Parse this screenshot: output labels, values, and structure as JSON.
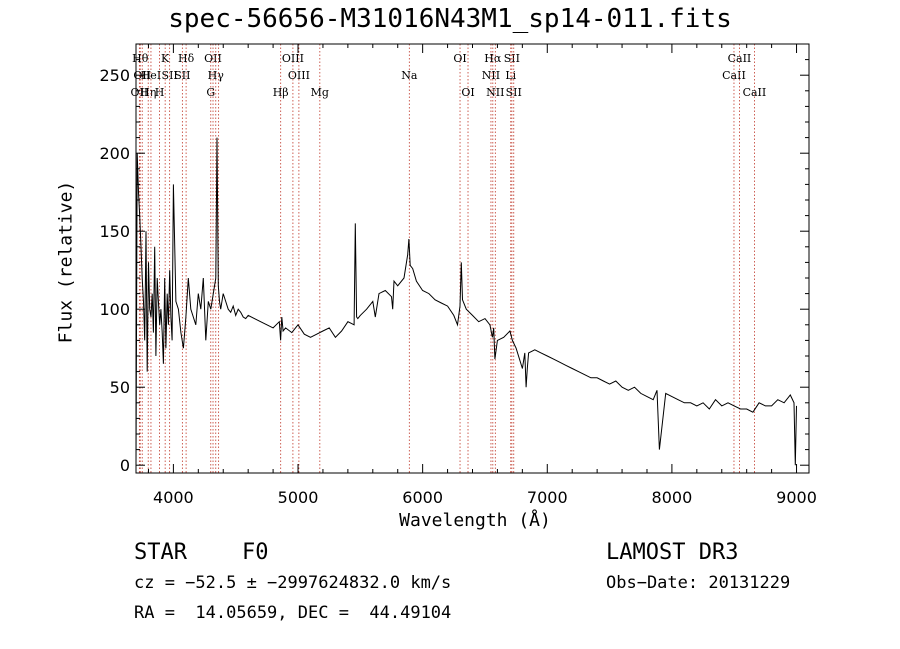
{
  "chart_data": {
    "type": "line",
    "title": "spec-56656-M31016N43M1_sp14-011.fits",
    "xlabel": "Wavelength (Å)",
    "ylabel": "Flux (relative)",
    "xlim": [
      3700,
      9100
    ],
    "ylim": [
      -5,
      270
    ],
    "xticks": [
      4000,
      5000,
      6000,
      7000,
      8000,
      9000
    ],
    "yticks": [
      0,
      50,
      100,
      150,
      200,
      250
    ],
    "series": [
      {
        "name": "flux",
        "x": [
          3700,
          3710,
          3720,
          3730,
          3740,
          3750,
          3760,
          3770,
          3780,
          3790,
          3800,
          3810,
          3820,
          3830,
          3840,
          3850,
          3860,
          3870,
          3880,
          3890,
          3900,
          3910,
          3920,
          3930,
          3940,
          3950,
          3960,
          3970,
          3980,
          3990,
          4000,
          4020,
          4040,
          4060,
          4080,
          4100,
          4120,
          4140,
          4160,
          4180,
          4200,
          4220,
          4240,
          4260,
          4280,
          4300,
          4320,
          4340,
          4350,
          4360,
          4370,
          4380,
          4400,
          4420,
          4440,
          4460,
          4480,
          4500,
          4520,
          4540,
          4560,
          4580,
          4600,
          4650,
          4700,
          4750,
          4800,
          4850,
          4860,
          4870,
          4880,
          4900,
          4950,
          5000,
          5050,
          5100,
          5150,
          5200,
          5250,
          5300,
          5350,
          5400,
          5450,
          5460,
          5470,
          5480,
          5500,
          5550,
          5600,
          5620,
          5650,
          5700,
          5750,
          5760,
          5770,
          5800,
          5850,
          5880,
          5890,
          5900,
          5920,
          5950,
          6000,
          6050,
          6100,
          6150,
          6200,
          6250,
          6280,
          6300,
          6310,
          6320,
          6350,
          6400,
          6450,
          6500,
          6540,
          6560,
          6570,
          6580,
          6600,
          6650,
          6700,
          6720,
          6750,
          6800,
          6820,
          6830,
          6840,
          6850,
          6900,
          6950,
          7000,
          7050,
          7100,
          7150,
          7200,
          7250,
          7300,
          7350,
          7400,
          7450,
          7500,
          7550,
          7600,
          7650,
          7700,
          7750,
          7800,
          7850,
          7880,
          7900,
          7950,
          8000,
          8050,
          8100,
          8150,
          8200,
          8250,
          8300,
          8350,
          8400,
          8450,
          8500,
          8550,
          8600,
          8650,
          8700,
          8750,
          8800,
          8850,
          8900,
          8950,
          8980,
          8990,
          9000
        ],
        "y": [
          0,
          200,
          175,
          160,
          140,
          120,
          105,
          80,
          150,
          60,
          130,
          100,
          95,
          110,
          85,
          140,
          70,
          120,
          105,
          90,
          100,
          85,
          65,
          120,
          75,
          110,
          90,
          125,
          95,
          80,
          180,
          105,
          100,
          85,
          75,
          95,
          120,
          100,
          95,
          90,
          110,
          100,
          120,
          80,
          105,
          100,
          110,
          120,
          210,
          115,
          105,
          100,
          110,
          105,
          100,
          98,
          102,
          96,
          100,
          98,
          95,
          94,
          96,
          94,
          92,
          90,
          88,
          92,
          80,
          95,
          86,
          88,
          85,
          90,
          84,
          82,
          84,
          86,
          88,
          82,
          86,
          92,
          90,
          155,
          95,
          94,
          96,
          100,
          105,
          95,
          110,
          112,
          108,
          100,
          118,
          115,
          120,
          135,
          145,
          128,
          126,
          118,
          112,
          110,
          106,
          104,
          102,
          96,
          90,
          102,
          130,
          106,
          100,
          96,
          92,
          94,
          90,
          82,
          88,
          68,
          80,
          82,
          86,
          80,
          75,
          62,
          72,
          50,
          62,
          72,
          74,
          72,
          70,
          68,
          66,
          64,
          62,
          60,
          58,
          56,
          56,
          54,
          52,
          54,
          50,
          48,
          50,
          46,
          44,
          42,
          48,
          10,
          46,
          44,
          42,
          40,
          40,
          38,
          40,
          36,
          42,
          38,
          40,
          38,
          36,
          36,
          34,
          40,
          38,
          38,
          42,
          40,
          45,
          40,
          0,
          38
        ]
      }
    ],
    "lines": [
      {
        "x": 3727,
        "label": "OII",
        "row": 3
      },
      {
        "x": 3734,
        "label": "Hθ",
        "row": 1
      },
      {
        "x": 3750,
        "label": "OII",
        "row": 2
      },
      {
        "x": 3798,
        "label": "Hη",
        "row": 3
      },
      {
        "x": 3820,
        "label": "HeI",
        "row": 2
      },
      {
        "x": 3889,
        "label": "H",
        "row": 3
      },
      {
        "x": 3934,
        "label": "K",
        "row": 1
      },
      {
        "x": 3970,
        "label": "SII",
        "row": 2
      },
      {
        "x": 4072,
        "label": "SII",
        "row": 2
      },
      {
        "x": 4102,
        "label": "Hδ",
        "row": 1
      },
      {
        "x": 4300,
        "label": "G",
        "row": 3
      },
      {
        "x": 4318,
        "label": "OII",
        "row": 1
      },
      {
        "x": 4340,
        "label": "Hγ",
        "row": 2
      },
      {
        "x": 4363,
        "label": "",
        "row": 0
      },
      {
        "x": 4861,
        "label": "Hβ",
        "row": 3
      },
      {
        "x": 4959,
        "label": "OIII",
        "row": 1
      },
      {
        "x": 5007,
        "label": "OIII",
        "row": 2
      },
      {
        "x": 5175,
        "label": "Mg",
        "row": 3
      },
      {
        "x": 5893,
        "label": "Na",
        "row": 2
      },
      {
        "x": 6300,
        "label": "OI",
        "row": 1
      },
      {
        "x": 6364,
        "label": "OI",
        "row": 3
      },
      {
        "x": 6548,
        "label": "NII",
        "row": 2
      },
      {
        "x": 6563,
        "label": "Hα",
        "row": 1
      },
      {
        "x": 6583,
        "label": "NII",
        "row": 3
      },
      {
        "x": 6707,
        "label": "Li",
        "row": 2
      },
      {
        "x": 6716,
        "label": "SII",
        "row": 1
      },
      {
        "x": 6731,
        "label": "SII",
        "row": 3
      },
      {
        "x": 8498,
        "label": "CaII",
        "row": 2
      },
      {
        "x": 8542,
        "label": "CaII",
        "row": 1
      },
      {
        "x": 8662,
        "label": "CaII",
        "row": 3
      }
    ]
  },
  "info": {
    "object_class": "STAR",
    "subclass": "F0",
    "survey": "LAMOST DR3",
    "cz": "cz = −52.5 ± −2997624832.0 km/s",
    "obs_date": "Obs−Date: 20131229",
    "coords": "RA =  14.05659, DEC =  44.49104"
  }
}
